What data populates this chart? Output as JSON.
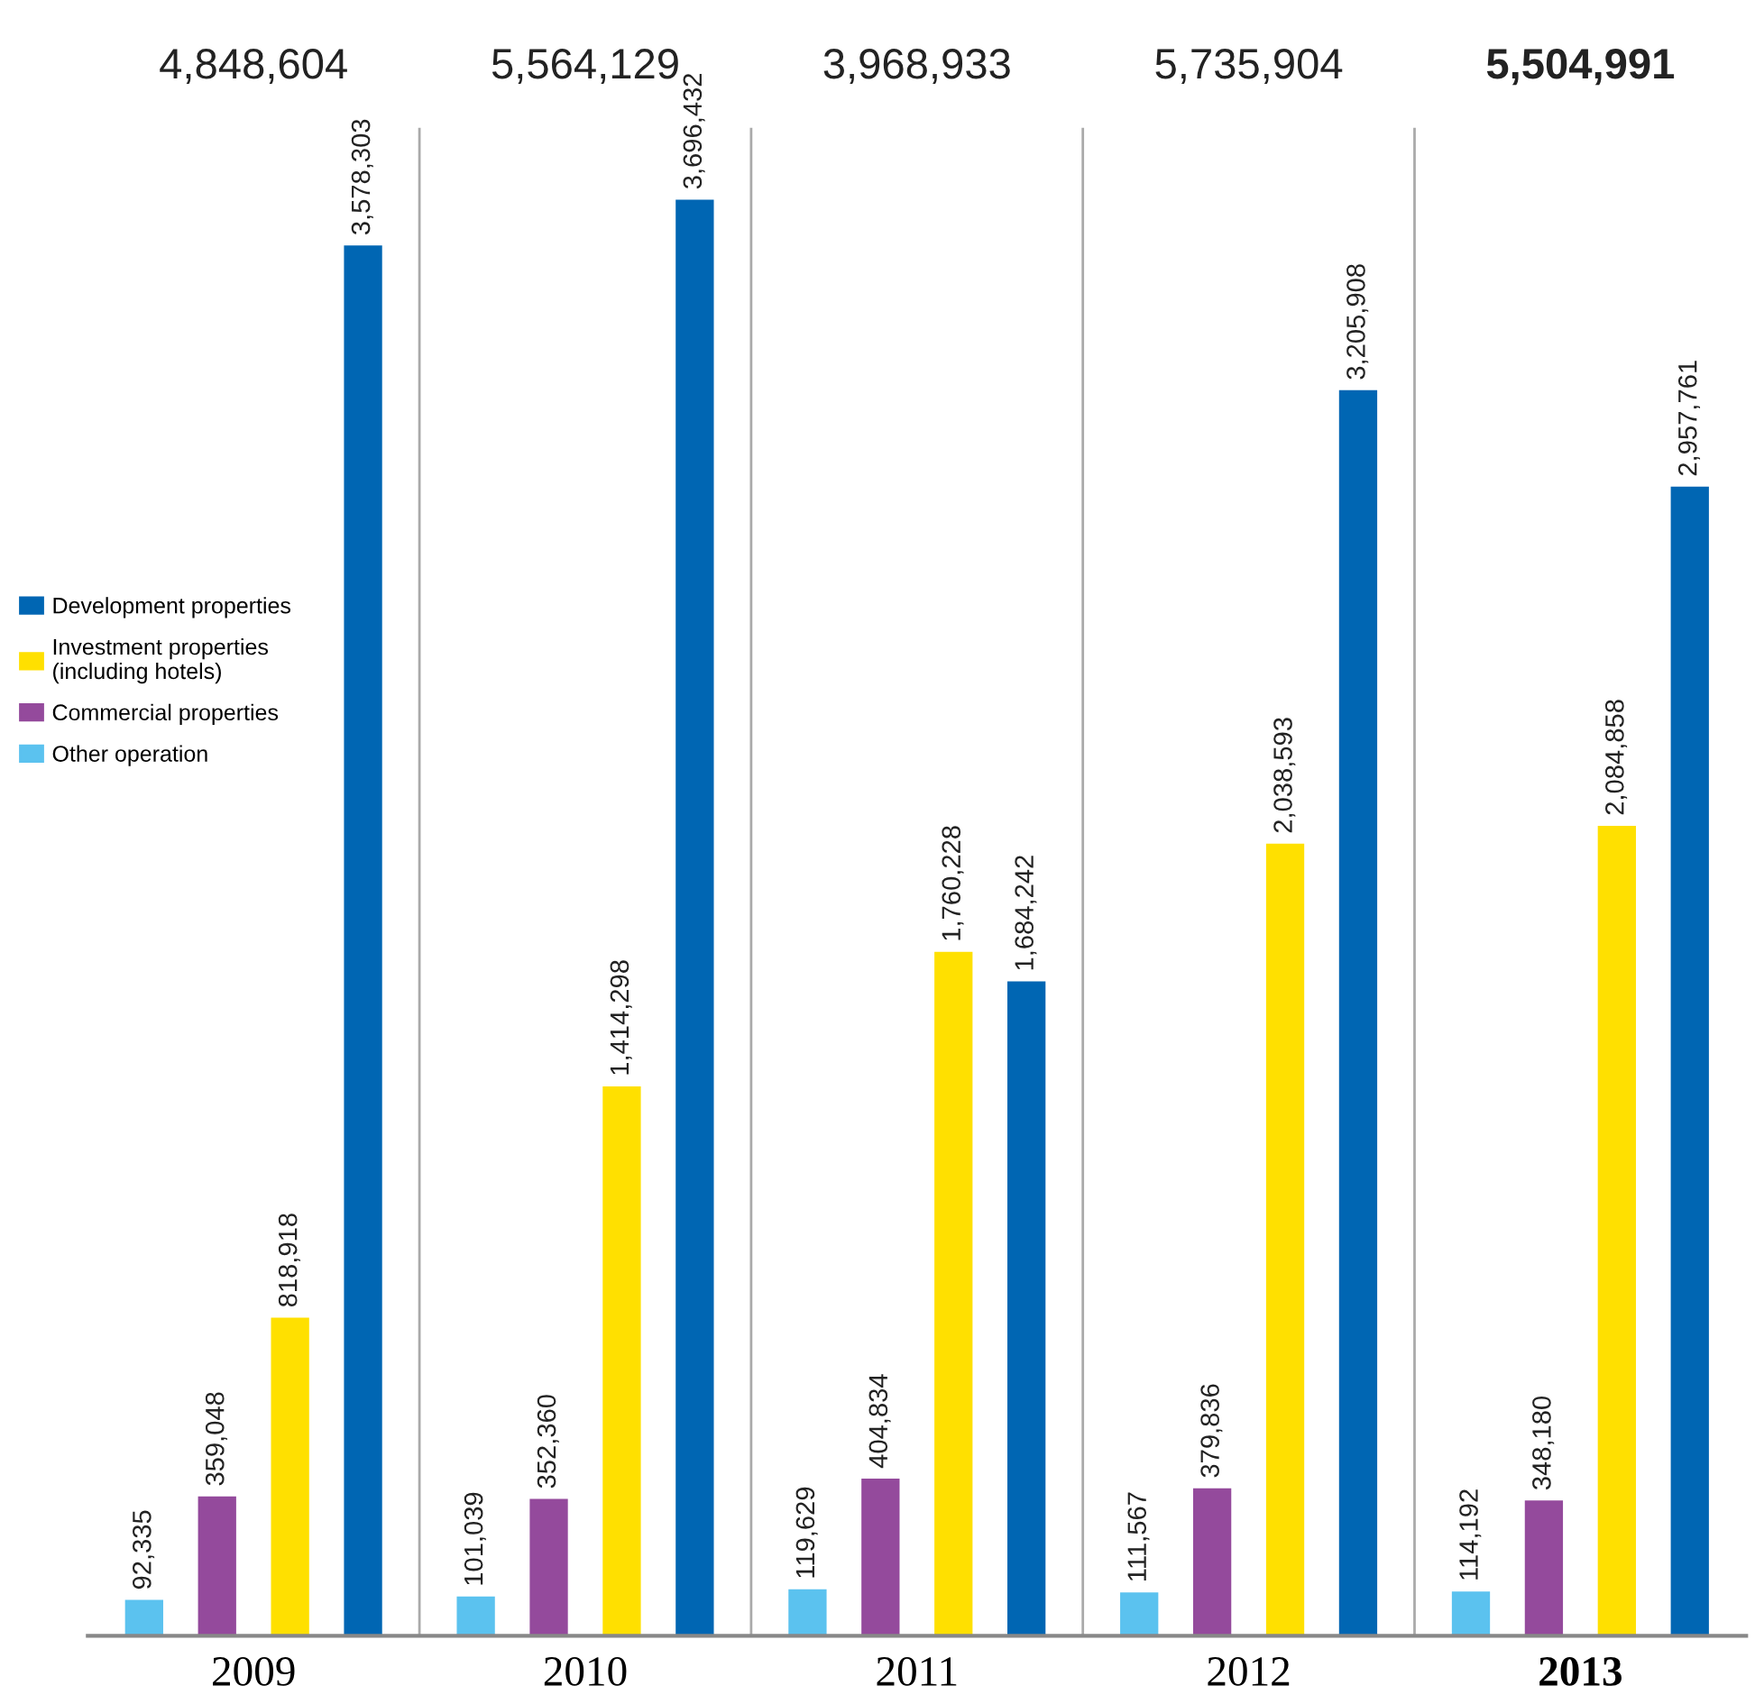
{
  "chart_data": {
    "type": "bar",
    "categories": [
      "2009",
      "2010",
      "2011",
      "2012",
      "2013"
    ],
    "series": [
      {
        "name": "Other operation",
        "color": "#5bc2ef",
        "values": [
          92335,
          101039,
          119629,
          111567,
          114192
        ],
        "value_labels": [
          "92,335",
          "101,039",
          "119,629",
          "111,567",
          "114,192"
        ]
      },
      {
        "name": "Commercial properties",
        "color": "#944a9c",
        "values": [
          359048,
          352360,
          404834,
          379836,
          348180
        ],
        "value_labels": [
          "359,048",
          "352,360",
          "404,834",
          "379,836",
          "348,180"
        ]
      },
      {
        "name": "Investment properties\n(including hotels)",
        "color": "#ffe000",
        "values": [
          818918,
          1414298,
          1760228,
          2038593,
          2084858
        ],
        "value_labels": [
          "818,918",
          "1,414,298",
          "1,760,228",
          "2,038,593",
          "2,084,858"
        ]
      },
      {
        "name": "Development properties",
        "color": "#0066b3",
        "values": [
          3578303,
          3696432,
          1684242,
          3205908,
          2957761
        ],
        "value_labels": [
          "3,578,303",
          "3,696,432",
          "1,684,242",
          "3,205,908",
          "2,957,761"
        ]
      }
    ],
    "annotations": [
      "4,848,604",
      "5,564,129",
      "3,968,933",
      "5,735,904",
      "5,504,991"
    ],
    "tick_labels": "x",
    "legend": "left",
    "grid": false
  }
}
